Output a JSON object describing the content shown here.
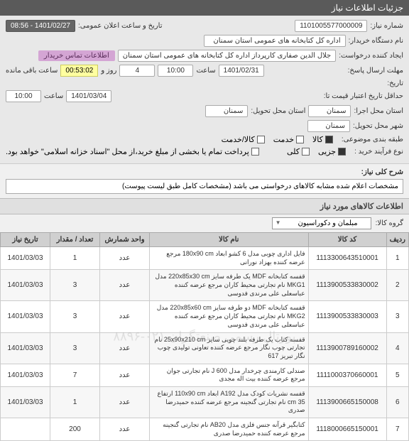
{
  "header": {
    "title": "جزئیات اطلاعات نیاز"
  },
  "form": {
    "need_no_label": "شماره نیاز:",
    "need_no": "1101005577000009",
    "buyer_org_label": "نام دستگاه خریدار:",
    "buyer_org": "اداره کل کتابخانه های عمومی استان سمنان",
    "announce_label": "تاریخ و ساعت اعلان عمومی:",
    "announce_date": "1401/02/27 - 08:56",
    "requester_label": "ایجاد کننده درخواست:",
    "requester": "جلال الدین صفاری کارپرداز اداره کل کتابخانه های عمومی استان سمنان",
    "buyer_contact": "اطلاعات تماس خریدار",
    "reply_deadline_label": "مهلت ارسال پاسخ:",
    "reply_date": "1401/02/31",
    "time_label": "ساعت",
    "reply_time": "10:00",
    "days_label": "روز و",
    "days": "4",
    "countdown": "00:53:02",
    "remain_label": "ساعت باقی مانده",
    "attach_label": "تاریخ:",
    "credit_label": "حداقل تاریخ اعتبار قیمت تا:",
    "credit_date": "1401/03/04",
    "credit_time": "10:00",
    "exec_province_label": "استان محل اجرا:",
    "exec_province": "سمنان",
    "deliver_province_label": "استان محل تحویل:",
    "deliver_province": "سمنان",
    "deliver_city_label": "شهر محل تحویل:",
    "deliver_city": "سمنان",
    "category_label": "طبقه بندی موضوعی:",
    "cat_goods": "کالا",
    "cat_service": "خدمت",
    "cat_goods_service": "کالا/خدمت",
    "buy_type_label": "نوع فرآیند خرید :",
    "buy_partial": "جزیی",
    "buy_total": "کلی",
    "payment_note": "پرداخت تمام یا بخشی از مبلغ خرید،از محل \"اسناد خزانه اسلامی\" خواهد بود."
  },
  "desc": {
    "label": "شرح کلی نیاز:",
    "text": "مشخصات اعلام شده مشابه کالاهای درخواستی می باشد (مشخصات کامل طبق لیست پیوست)"
  },
  "items_section": {
    "title": "اطلاعات کالاهای مورد نیاز",
    "group_label": "گروه کالا:",
    "group_value": "مبلمان و دکوراسیون"
  },
  "table": {
    "headers": {
      "idx": "ردیف",
      "code": "کد کالا",
      "name": "نام کالا",
      "unit": "واحد شمارش",
      "qty": "تعداد / مقدار",
      "date": "تاریخ نیاز"
    },
    "rows": [
      {
        "idx": "1",
        "code": "1113300643510001",
        "name": "فایل اداری چوبی مدل 6 کشو ابعاد 180x90 cm مرجع عرضه کننده بهزاد نورانی",
        "unit": "عدد",
        "qty": "1",
        "date": "1401/03/03"
      },
      {
        "idx": "2",
        "code": "1113900533830002",
        "name": "قفسه کتابخانه MDF یک طرفه سایز 220x85x30 cm مدل MKG1 نام تجارتی محیط کاران مرجع عرضه کننده عباسعلی علی مرندی فدوسی",
        "unit": "عدد",
        "qty": "3",
        "date": "1401/03/03"
      },
      {
        "idx": "3",
        "code": "1113900533830003",
        "name": "قفسه کتابخانه MDF دو طرفه سایز 220x85x60 cm مدل MKG2 نام تجارتی محیط کاران مرجع عرضه کننده عباسعلی علی مرندی فدوسی",
        "unit": "عدد",
        "qty": "3",
        "date": "1401/03/03"
      },
      {
        "idx": "4",
        "code": "1113900789160002",
        "name": "قفسه کتاب یک طرفه بلند چوبی سایز 25x90x210 cm نام تجارتی چوب نگار مرجع عرضه کننده تعاونی تولیدی چوب نگار تبریز 617",
        "unit": "عدد",
        "qty": "3",
        "date": "1401/03/03"
      },
      {
        "idx": "5",
        "code": "1111000370660001",
        "name": "صندلی کارمندی چرخدار مدل J 600 نام تجارتی جوان مرجع عرضه کننده بیت اله مجدی",
        "unit": "عدد",
        "qty": "7",
        "date": "1401/03/03"
      },
      {
        "idx": "6",
        "code": "1113900665150008",
        "name": "قفسه نشریات کودک مدل A192 ابعاد 110x90 cm ارتفاع 35 cm نام تجارتی گنجینه مرجع عرضه کننده حمیدرضا صدری",
        "unit": "عدد",
        "qty": "1",
        "date": "1401/03/03"
      },
      {
        "idx": "7",
        "code": "1118000665150001",
        "name": "کتابگیر قرآنه جنس فلزی مدل AB20 نام تجارتی گنجینه مرجع عرضه کننده حمیدرضا صدری",
        "unit": "عدد",
        "qty": "200",
        "date": ""
      }
    ]
  },
  "watermark": "پورتال رسمی صنعتگران ۰۲۱-۸۸۹۶"
}
